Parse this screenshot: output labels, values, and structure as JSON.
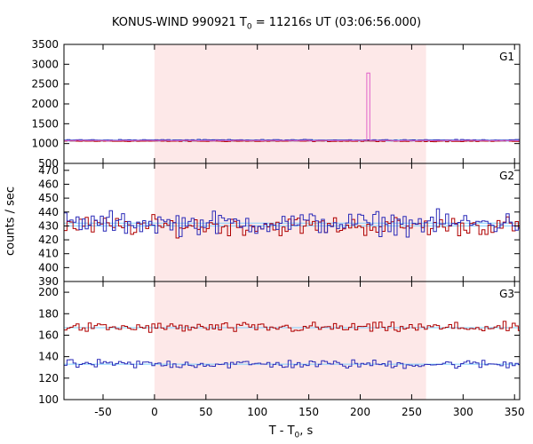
{
  "chart_data": {
    "type": "line",
    "title": {
      "prefix": "KONUS-WIND 990921 T",
      "sub": "0",
      "suffix": " = 11216s UT (03:06:56.000)"
    },
    "xlabel": {
      "prefix": "T - T",
      "sub": "0",
      "suffix": ", s"
    },
    "ylabel": "counts / sec",
    "xlim": [
      -88,
      355
    ],
    "x_ticks": [
      -50,
      0,
      50,
      100,
      150,
      200,
      250,
      300,
      350
    ],
    "shaded_interval": [
      0,
      264
    ],
    "panels": [
      {
        "name": "G1",
        "ylim": [
          500,
          3500
        ],
        "y_ticks": [
          500,
          1000,
          1500,
          2000,
          2500,
          3000,
          3500
        ],
        "background_levels": [
          1060,
          1090
        ],
        "series": [
          {
            "color": "#b00000",
            "base": 1060,
            "amp": 18
          },
          {
            "color": "#2a2ab8",
            "base": 1090,
            "amp": 18
          },
          {
            "color": "#e060c8",
            "base": 1075,
            "amp": 10,
            "spike": {
              "x0": 206,
              "x1": 209,
              "value": 2780
            }
          }
        ]
      },
      {
        "name": "G2",
        "ylim": [
          390,
          475
        ],
        "y_ticks": [
          390,
          400,
          410,
          420,
          430,
          440,
          450,
          460,
          470
        ],
        "background_levels": [
          430,
          432
        ],
        "series": [
          {
            "color": "#b00000",
            "base": 430,
            "amp": 10
          },
          {
            "color": "#2a2ab8",
            "base": 432,
            "amp": 12
          }
        ]
      },
      {
        "name": "G3",
        "ylim": [
          100,
          210
        ],
        "y_ticks": [
          100,
          120,
          140,
          160,
          180,
          200
        ],
        "background_levels": [
          167,
          133
        ],
        "series": [
          {
            "color": "#b00000",
            "base": 167,
            "amp": 7
          },
          {
            "color": "#2a2ab8",
            "base": 133,
            "amp": 6
          }
        ]
      }
    ],
    "bin_width": 2.944
  }
}
